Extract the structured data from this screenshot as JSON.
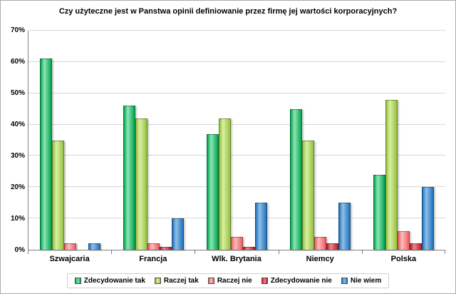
{
  "chart_data": {
    "type": "bar",
    "title": "Czy użyteczne jest w Panstwa opinii definiowanie przez firmę jej wartości korporacyjnych?",
    "categories": [
      "Szwajcaria",
      "Francja",
      "Wlk. Brytania",
      "Niemcy",
      "Polska"
    ],
    "series": [
      {
        "name": "Zdecydowanie tak",
        "color": "#00A550",
        "color_light": "#8FE6B4",
        "values": [
          61,
          46,
          37,
          45,
          24
        ]
      },
      {
        "name": "Raczej tak",
        "color": "#95C23D",
        "color_light": "#D9EFA5",
        "values": [
          35,
          42,
          42,
          35,
          48
        ]
      },
      {
        "name": "Raczej nie",
        "color": "#F05E62",
        "color_light": "#FBBDBD",
        "values": [
          2,
          2,
          4,
          4,
          6
        ]
      },
      {
        "name": "Zdecydowanie nie",
        "color": "#BE1E24",
        "color_light": "#E88A8C",
        "values": [
          0,
          1,
          1,
          2,
          2
        ]
      },
      {
        "name": "Nie wiem",
        "color": "#1F72BB",
        "color_light": "#8FC0EA",
        "values": [
          2,
          10,
          15,
          15,
          20
        ]
      }
    ],
    "xlabel": "",
    "ylabel": "",
    "ylim": [
      0,
      70
    ],
    "ytick_step": 10,
    "ytick_labels": [
      "0%",
      "10%",
      "20%",
      "30%",
      "40%",
      "50%",
      "60%",
      "70%"
    ],
    "grid": true,
    "legend_position": "bottom"
  }
}
